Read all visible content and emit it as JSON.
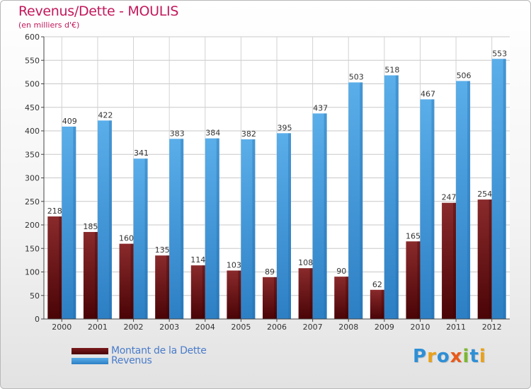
{
  "header": {
    "title": "Revenus/Dette - MOULIS",
    "subtitle": "(en milliers d'€)"
  },
  "legend": {
    "items": [
      {
        "label": "Montant de la Dette",
        "color": "#6b0f12"
      },
      {
        "label": "Revenus",
        "color": "#3a8fd6"
      }
    ]
  },
  "logo": {
    "text": "Proxiti",
    "letters": [
      {
        "char": "P",
        "color": "#2e8fd6"
      },
      {
        "char": "r",
        "color": "#e8a11a"
      },
      {
        "char": "o",
        "color": "#2e8fd6"
      },
      {
        "char": "x",
        "color": "#e85a1a"
      },
      {
        "char": "i",
        "color": "#7cb82f"
      },
      {
        "char": "t",
        "color": "#2e8fd6"
      },
      {
        "char": "i",
        "color": "#e8a11a"
      }
    ]
  },
  "chart_data": {
    "type": "bar",
    "title": "Revenus/Dette - MOULIS",
    "subtitle": "(en milliers d'€)",
    "categories": [
      "2000",
      "2001",
      "2002",
      "2003",
      "2004",
      "2005",
      "2006",
      "2007",
      "2008",
      "2009",
      "2010",
      "2011",
      "2012"
    ],
    "series": [
      {
        "name": "Montant de la Dette",
        "color": "#6b0f12",
        "values": [
          218,
          185,
          160,
          135,
          114,
          103,
          89,
          108,
          90,
          62,
          165,
          247,
          254
        ]
      },
      {
        "name": "Revenus",
        "color": "#3a8fd6",
        "values": [
          409,
          422,
          341,
          383,
          384,
          382,
          395,
          437,
          503,
          518,
          467,
          506,
          553
        ]
      }
    ],
    "ylim": [
      0,
      600
    ],
    "yticks": [
      0,
      50,
      100,
      150,
      200,
      250,
      300,
      350,
      400,
      450,
      500,
      550,
      600
    ],
    "grid": true,
    "legend": "bottom-left"
  }
}
